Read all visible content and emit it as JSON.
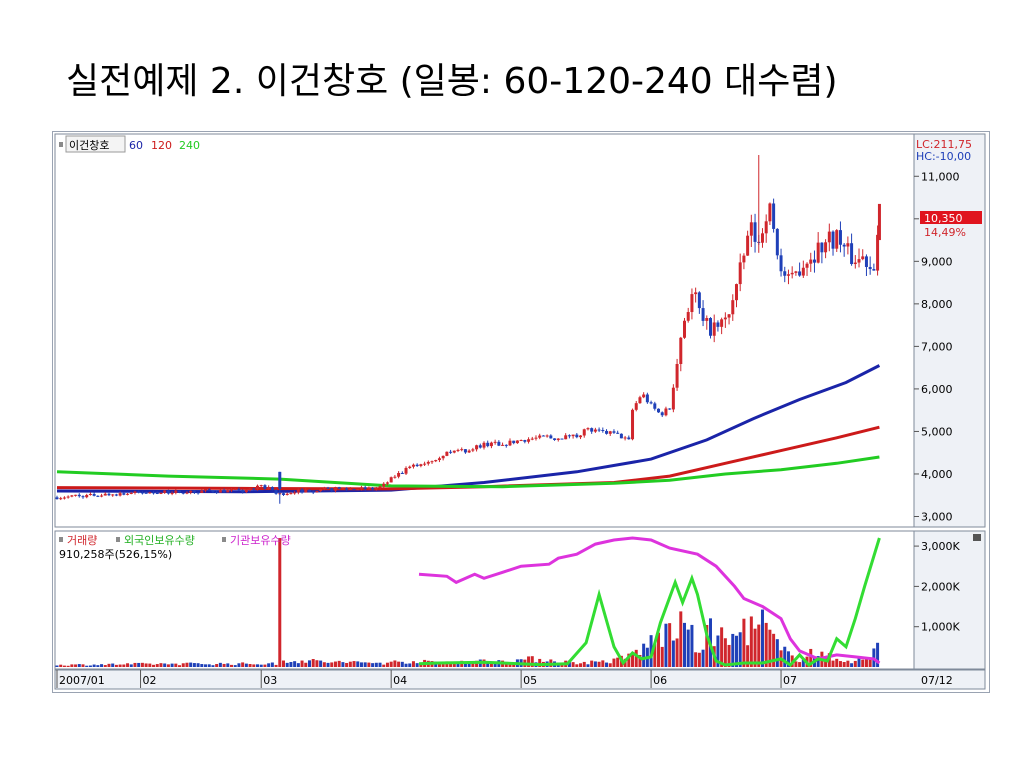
{
  "slide": {
    "title": "실전예제 2. 이건창호 (일봉: 60-120-240 대수렴)"
  },
  "colors": {
    "up": "#d0262c",
    "down": "#1f40b8",
    "ma60": "#1a24a8",
    "ma120": "#cc1a1a",
    "ma240": "#22cc22",
    "foreign": "#33dd33",
    "institution": "#dd33dd"
  },
  "price_panel": {
    "legend_stock": "이건창호",
    "legend_ma": [
      "60",
      "120",
      "240"
    ],
    "lc_label": "LC:211,75",
    "hc_label": "HC:-10,00",
    "current_price": "10,350",
    "current_change": "14,49%"
  },
  "volume_panel": {
    "legend": [
      "거래량",
      "외국인보유수량",
      "기관보유수량"
    ],
    "volume_info": "910,258주(526,15%)"
  },
  "chart_data": {
    "type": "candlestick",
    "price": {
      "ylim": [
        2800,
        11900
      ],
      "yticks": [
        3000,
        4000,
        5000,
        6000,
        7000,
        8000,
        9000,
        10000,
        11000
      ],
      "ytick_labels": [
        "3,000",
        "4,000",
        "5,000",
        "6,000",
        "7,000",
        "8,000",
        "9,000",
        "10,000",
        "11,000"
      ],
      "levels": [
        [
          0,
          3450
        ],
        [
          20,
          3500
        ],
        [
          40,
          3550
        ],
        [
          60,
          3570
        ],
        [
          80,
          3600
        ],
        [
          100,
          3600
        ],
        [
          110,
          3700
        ],
        [
          116,
          3650
        ],
        [
          118,
          3520
        ],
        [
          130,
          3600
        ],
        [
          150,
          3650
        ],
        [
          170,
          3650
        ],
        [
          175,
          3700
        ],
        [
          182,
          3950
        ],
        [
          190,
          4150
        ],
        [
          200,
          4300
        ],
        [
          210,
          4500
        ],
        [
          220,
          4550
        ],
        [
          230,
          4700
        ],
        [
          240,
          4700
        ],
        [
          250,
          4800
        ],
        [
          260,
          4850
        ],
        [
          270,
          4850
        ],
        [
          280,
          4900
        ],
        [
          285,
          5050
        ],
        [
          290,
          5000
        ],
        [
          300,
          4950
        ],
        [
          305,
          4850
        ],
        [
          309,
          4750
        ],
        [
          310,
          5500
        ],
        [
          315,
          5900
        ],
        [
          320,
          5600
        ],
        [
          325,
          5400
        ],
        [
          330,
          5550
        ],
        [
          333,
          6500
        ],
        [
          338,
          7700
        ],
        [
          343,
          8300
        ],
        [
          348,
          7500
        ],
        [
          355,
          7400
        ],
        [
          360,
          7600
        ],
        [
          365,
          8200
        ],
        [
          370,
          9100
        ],
        [
          373,
          9800
        ],
        [
          378,
          9400
        ],
        [
          383,
          10400
        ],
        [
          386,
          9700
        ],
        [
          390,
          8800
        ],
        [
          395,
          8400
        ],
        [
          400,
          8900
        ],
        [
          405,
          9100
        ],
        [
          410,
          9300
        ],
        [
          415,
          9500
        ],
        [
          420,
          9600
        ],
        [
          425,
          9200
        ],
        [
          430,
          9050
        ],
        [
          435,
          9100
        ],
        [
          438,
          8900
        ],
        [
          440,
          9000
        ],
        [
          443,
          9900
        ]
      ],
      "ma60": [
        [
          0,
          3600
        ],
        [
          100,
          3580
        ],
        [
          180,
          3620
        ],
        [
          230,
          3800
        ],
        [
          280,
          4050
        ],
        [
          320,
          4350
        ],
        [
          350,
          4800
        ],
        [
          375,
          5300
        ],
        [
          400,
          5750
        ],
        [
          425,
          6150
        ],
        [
          443,
          6550
        ]
      ],
      "ma120": [
        [
          0,
          3680
        ],
        [
          100,
          3660
        ],
        [
          180,
          3650
        ],
        [
          230,
          3700
        ],
        [
          300,
          3800
        ],
        [
          330,
          3950
        ],
        [
          360,
          4250
        ],
        [
          390,
          4550
        ],
        [
          420,
          4850
        ],
        [
          443,
          5100
        ]
      ],
      "ma240": [
        [
          0,
          4050
        ],
        [
          60,
          3950
        ],
        [
          120,
          3880
        ],
        [
          180,
          3720
        ],
        [
          240,
          3700
        ],
        [
          300,
          3780
        ],
        [
          330,
          3850
        ],
        [
          360,
          4000
        ],
        [
          390,
          4100
        ],
        [
          420,
          4250
        ],
        [
          443,
          4400
        ]
      ]
    },
    "volume": {
      "ylim": [
        0,
        3300000
      ],
      "yticks": [
        1000000,
        2000000,
        3000000
      ],
      "ytick_labels": [
        "1,000K",
        "2,000K",
        "3,000K"
      ],
      "levels": [
        [
          0,
          50000
        ],
        [
          60,
          80000
        ],
        [
          118,
          80000
        ],
        [
          120,
          3200000
        ],
        [
          122,
          150000
        ],
        [
          125,
          180000
        ],
        [
          135,
          150000
        ],
        [
          150,
          120000
        ],
        [
          180,
          100000
        ],
        [
          183,
          150000
        ],
        [
          200,
          120000
        ],
        [
          240,
          150000
        ],
        [
          260,
          200000
        ],
        [
          280,
          100000
        ],
        [
          300,
          150000
        ],
        [
          310,
          300000
        ],
        [
          320,
          600000
        ],
        [
          330,
          900000
        ],
        [
          340,
          1000000
        ],
        [
          345,
          350000
        ],
        [
          350,
          800000
        ],
        [
          355,
          900000
        ],
        [
          360,
          600000
        ],
        [
          365,
          700000
        ],
        [
          370,
          1000000
        ],
        [
          375,
          900000
        ],
        [
          380,
          1100000
        ],
        [
          385,
          700000
        ],
        [
          390,
          400000
        ],
        [
          395,
          300000
        ],
        [
          400,
          200000
        ],
        [
          405,
          400000
        ],
        [
          410,
          300000
        ],
        [
          420,
          200000
        ],
        [
          430,
          150000
        ],
        [
          438,
          200000
        ],
        [
          443,
          850000
        ]
      ],
      "foreign_holding": [
        [
          195,
          80000
        ],
        [
          205,
          100000
        ],
        [
          230,
          120000
        ],
        [
          260,
          60000
        ],
        [
          275,
          80000
        ],
        [
          285,
          600000
        ],
        [
          292,
          1800000
        ],
        [
          300,
          500000
        ],
        [
          305,
          100000
        ],
        [
          310,
          350000
        ],
        [
          315,
          200000
        ],
        [
          320,
          250000
        ],
        [
          325,
          1100000
        ],
        [
          333,
          2100000
        ],
        [
          337,
          1600000
        ],
        [
          342,
          2200000
        ],
        [
          345,
          1800000
        ],
        [
          350,
          800000
        ],
        [
          355,
          150000
        ],
        [
          360,
          50000
        ],
        [
          370,
          100000
        ],
        [
          380,
          100000
        ],
        [
          390,
          200000
        ],
        [
          395,
          50000
        ],
        [
          400,
          300000
        ],
        [
          405,
          50000
        ],
        [
          410,
          200000
        ],
        [
          415,
          150000
        ],
        [
          420,
          700000
        ],
        [
          425,
          500000
        ],
        [
          430,
          1200000
        ],
        [
          435,
          2000000
        ],
        [
          443,
          3200000
        ]
      ],
      "institution_holding": [
        [
          195,
          2300000
        ],
        [
          210,
          2250000
        ],
        [
          215,
          2100000
        ],
        [
          225,
          2300000
        ],
        [
          230,
          2200000
        ],
        [
          240,
          2350000
        ],
        [
          250,
          2500000
        ],
        [
          265,
          2550000
        ],
        [
          270,
          2700000
        ],
        [
          280,
          2800000
        ],
        [
          290,
          3050000
        ],
        [
          300,
          3150000
        ],
        [
          310,
          3200000
        ],
        [
          320,
          3150000
        ],
        [
          330,
          2950000
        ],
        [
          345,
          2800000
        ],
        [
          355,
          2500000
        ],
        [
          365,
          2000000
        ],
        [
          370,
          1700000
        ],
        [
          380,
          1500000
        ],
        [
          390,
          1200000
        ],
        [
          395,
          700000
        ],
        [
          400,
          400000
        ],
        [
          410,
          200000
        ],
        [
          420,
          300000
        ],
        [
          430,
          250000
        ],
        [
          440,
          200000
        ],
        [
          443,
          100000
        ]
      ]
    },
    "x_axis": {
      "range": [
        0,
        460
      ],
      "labels": [
        {
          "x": 0,
          "label": "2007/01"
        },
        {
          "x": 45,
          "label": "02"
        },
        {
          "x": 110,
          "label": "03"
        },
        {
          "x": 180,
          "label": "04"
        },
        {
          "x": 250,
          "label": "05"
        },
        {
          "x": 320,
          "label": "06"
        },
        {
          "x": 390,
          "label": "07"
        }
      ],
      "end_label": "07/12"
    }
  }
}
